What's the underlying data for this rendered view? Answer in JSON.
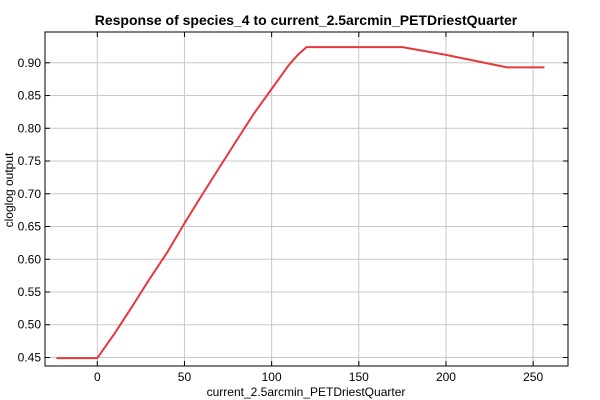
{
  "chart_data": {
    "type": "line",
    "title": "Response of species_4 to current_2.5arcmin_PETDriestQuarter",
    "xlabel": "current_2.5arcmin_PETDriestQuarter",
    "ylabel": "cloglog output",
    "xlim": [
      -30,
      270
    ],
    "ylim": [
      0.437,
      0.947
    ],
    "xticks": [
      0,
      50,
      100,
      150,
      200,
      250
    ],
    "xtick_labels": [
      "0",
      "50",
      "100",
      "150",
      "200",
      "250"
    ],
    "yticks": [
      0.45,
      0.5,
      0.55,
      0.6,
      0.65,
      0.7,
      0.75,
      0.8,
      0.85,
      0.9
    ],
    "ytick_labels": [
      "0.45",
      "0.50",
      "0.55",
      "0.60",
      "0.65",
      "0.70",
      "0.75",
      "0.80",
      "0.85",
      "0.90"
    ],
    "grid": true,
    "legend": "none",
    "series": [
      {
        "color": "#e8383b",
        "x": [
          -23,
          0,
          10,
          20,
          30,
          40,
          50,
          60,
          70,
          80,
          90,
          100,
          110,
          115,
          120,
          150,
          175,
          200,
          235,
          256
        ],
        "y": [
          0.449,
          0.449,
          0.487,
          0.528,
          0.57,
          0.61,
          0.655,
          0.698,
          0.74,
          0.782,
          0.823,
          0.86,
          0.897,
          0.912,
          0.924,
          0.924,
          0.924,
          0.912,
          0.893,
          0.893
        ]
      }
    ]
  }
}
